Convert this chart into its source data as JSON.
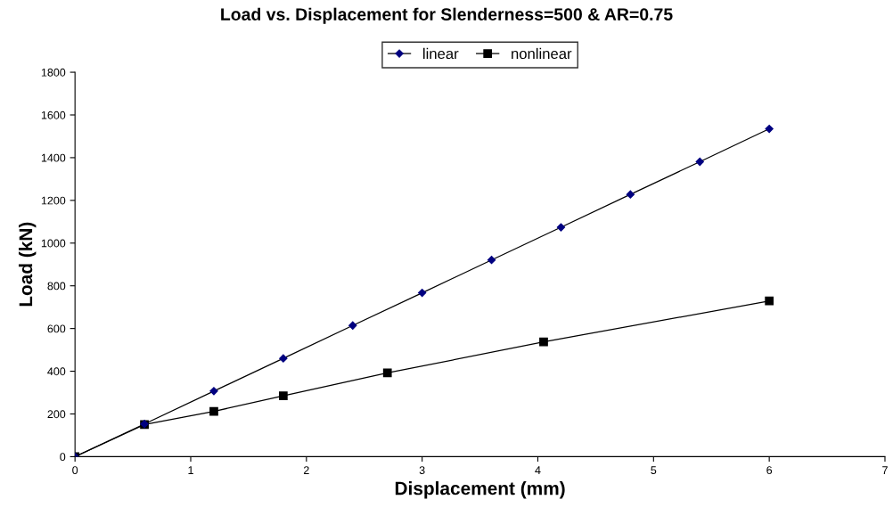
{
  "chart_data": {
    "type": "line",
    "title": "Load vs. Displacement for Slenderness=500 & AR=0.75",
    "xlabel": "Displacement (mm)",
    "ylabel": "Load (kN)",
    "series": [
      {
        "name": "linear",
        "color": "#000080",
        "marker": "diamond",
        "x": [
          0,
          0.6,
          1.2,
          1.8,
          2.4,
          3.0,
          3.6,
          4.2,
          4.8,
          5.4,
          6.0
        ],
        "values": [
          0,
          153,
          307,
          460,
          614,
          767,
          921,
          1074,
          1228,
          1381,
          1535
        ]
      },
      {
        "name": "nonlinear",
        "color": "#000000",
        "marker": "square",
        "x": [
          0,
          0.6,
          1.2,
          1.8,
          2.7,
          4.05,
          6.0
        ],
        "values": [
          0,
          150,
          212,
          285,
          392,
          537,
          729
        ]
      }
    ],
    "xlim": [
      0,
      7
    ],
    "xticks": [
      0,
      1,
      2,
      3,
      4,
      5,
      6,
      7
    ],
    "ylim": [
      0,
      1800
    ],
    "yticks": [
      0,
      200,
      400,
      600,
      800,
      1000,
      1200,
      1400,
      1600,
      1800
    ],
    "grid": false,
    "legend": "top",
    "line_style": "solid"
  }
}
